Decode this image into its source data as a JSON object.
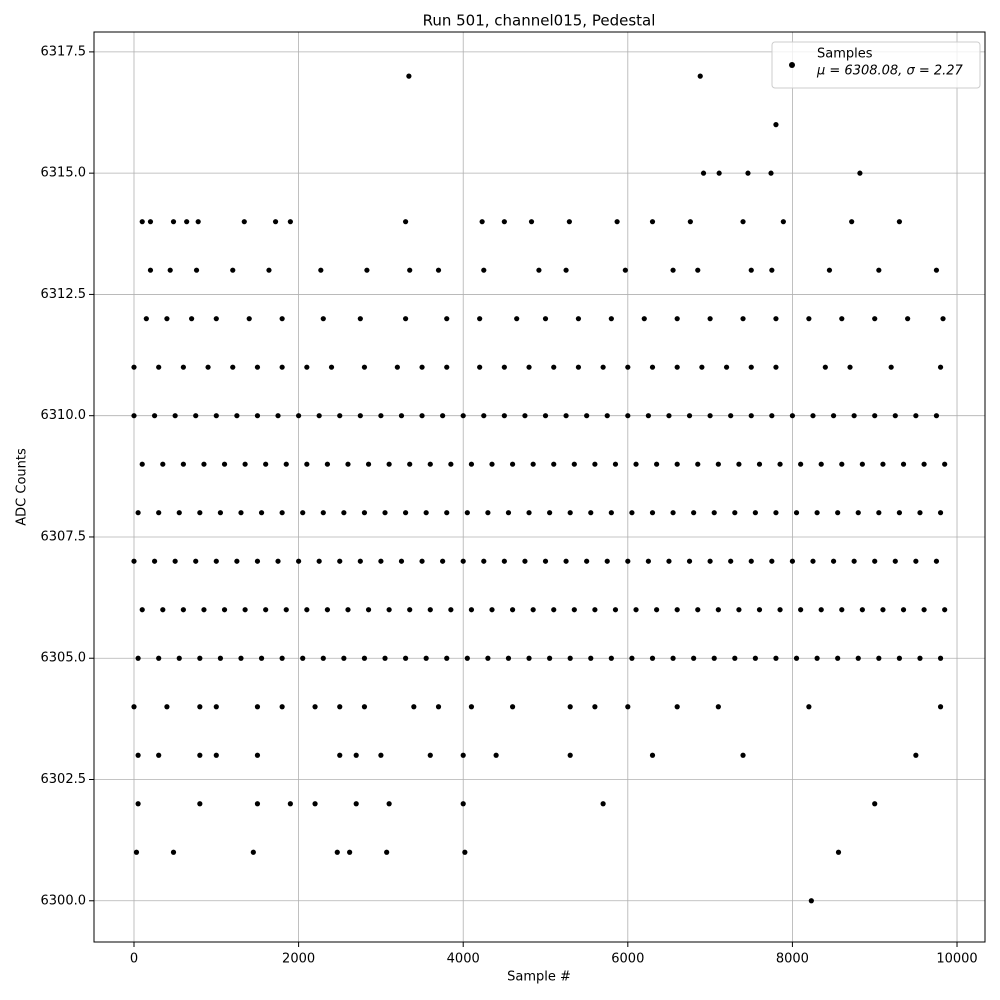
{
  "chart_data": {
    "type": "scatter",
    "title": "Run 501, channel015, Pedestal",
    "xlabel": "Sample #",
    "ylabel": "ADC Counts",
    "legend_loc": "upper right",
    "stats_label": "μ = 6308.08, σ = 2.27",
    "grid": true,
    "xlim": [
      -486,
      10340
    ],
    "ylim": [
      6299.15,
      6317.91
    ],
    "xticks": [
      0,
      2000,
      4000,
      6000,
      8000,
      10000
    ],
    "yticks": [
      {
        "value": 6300,
        "label": "6300.0"
      },
      {
        "value": 6302.5,
        "label": "6302.5"
      },
      {
        "value": 6305,
        "label": "6305.0"
      },
      {
        "value": 6307.5,
        "label": "6307.5"
      },
      {
        "value": 6310,
        "label": "6310.0"
      },
      {
        "value": 6312.5,
        "label": "6312.5"
      },
      {
        "value": 6315,
        "label": "6315.0"
      },
      {
        "value": 6317.5,
        "label": "6317.5"
      }
    ],
    "series": [
      {
        "name": "Samples",
        "color": "#000000",
        "x": [
          3340,
          6880,
          7800,
          6920,
          7110,
          7460,
          7740,
          8820,
          100,
          200,
          480,
          640,
          780,
          1340,
          1720,
          1900,
          3300,
          4230,
          4500,
          4830,
          5290,
          5870,
          6300,
          6760,
          7400,
          7890,
          8720,
          9300,
          200,
          440,
          760,
          1200,
          1640,
          2270,
          2830,
          3350,
          3700,
          4250,
          4920,
          5250,
          5970,
          6550,
          6850,
          7500,
          7750,
          8450,
          9050,
          9750,
          150,
          400,
          700,
          1000,
          1400,
          1800,
          2300,
          2750,
          3300,
          3800,
          4200,
          4650,
          5000,
          5400,
          5800,
          6200,
          6600,
          7000,
          7400,
          7800,
          8200,
          8600,
          9000,
          9400,
          9830,
          0,
          300,
          600,
          900,
          1200,
          1500,
          1800,
          2100,
          2400,
          2800,
          3200,
          3500,
          3800,
          4200,
          4500,
          4800,
          5100,
          5400,
          5700,
          6000,
          6300,
          6600,
          6900,
          7200,
          7500,
          7800,
          8400,
          8700,
          9200,
          9800,
          0,
          250,
          500,
          750,
          1000,
          1250,
          1500,
          1750,
          2000,
          2250,
          2500,
          2750,
          3000,
          3250,
          3500,
          3750,
          4000,
          4250,
          4500,
          4750,
          5000,
          5250,
          5500,
          5750,
          6000,
          6250,
          6500,
          6750,
          7000,
          7250,
          7500,
          7750,
          8000,
          8250,
          8500,
          8750,
          9000,
          9250,
          9500,
          9750,
          100,
          350,
          600,
          850,
          1100,
          1350,
          1600,
          1850,
          2100,
          2350,
          2600,
          2850,
          3100,
          3350,
          3600,
          3850,
          4100,
          4350,
          4600,
          4850,
          5100,
          5350,
          5600,
          5850,
          6100,
          6350,
          6600,
          6850,
          7100,
          7350,
          7600,
          7850,
          8100,
          8350,
          8600,
          8850,
          9100,
          9350,
          9600,
          9850,
          50,
          300,
          550,
          800,
          1050,
          1300,
          1550,
          1800,
          2050,
          2300,
          2550,
          2800,
          3050,
          3300,
          3550,
          3800,
          4050,
          4300,
          4550,
          4800,
          5050,
          5300,
          5550,
          5800,
          6050,
          6300,
          6550,
          6800,
          7050,
          7300,
          7550,
          7800,
          8050,
          8300,
          8550,
          8800,
          9050,
          9300,
          9550,
          9800,
          0,
          250,
          500,
          750,
          1000,
          1250,
          1500,
          1750,
          2000,
          2250,
          2500,
          2750,
          3000,
          3250,
          3500,
          3750,
          4000,
          4250,
          4500,
          4750,
          5000,
          5250,
          5500,
          5750,
          6000,
          6250,
          6500,
          6750,
          7000,
          7250,
          7500,
          7750,
          8000,
          8250,
          8500,
          8750,
          9000,
          9250,
          9500,
          9750,
          100,
          350,
          600,
          850,
          1100,
          1350,
          1600,
          1850,
          2100,
          2350,
          2600,
          2850,
          3100,
          3350,
          3600,
          3850,
          4100,
          4350,
          4600,
          4850,
          5100,
          5350,
          5600,
          5850,
          6100,
          6350,
          6600,
          6850,
          7100,
          7350,
          7600,
          7850,
          8100,
          8350,
          8600,
          8850,
          9100,
          9350,
          9600,
          9850,
          50,
          300,
          550,
          800,
          1050,
          1300,
          1550,
          1800,
          2050,
          2300,
          2550,
          2800,
          3050,
          3300,
          3550,
          3800,
          4050,
          4300,
          4550,
          4800,
          5050,
          5300,
          5550,
          5800,
          6050,
          6300,
          6550,
          6800,
          7050,
          7300,
          7550,
          7800,
          8050,
          8300,
          8550,
          8800,
          9050,
          9300,
          9550,
          9800,
          0,
          400,
          800,
          1000,
          1500,
          1800,
          2200,
          2500,
          2800,
          3400,
          3700,
          4100,
          4600,
          5300,
          5600,
          6000,
          6600,
          7100,
          8200,
          9800,
          50,
          300,
          800,
          1000,
          1500,
          2500,
          2700,
          3000,
          3600,
          4000,
          4400,
          5300,
          6300,
          7400,
          9500,
          50,
          800,
          1500,
          1900,
          2200,
          2700,
          3100,
          4000,
          5700,
          9000,
          30,
          480,
          1450,
          2470,
          2620,
          3070,
          4020,
          8560,
          8230
        ],
        "values": [
          6317,
          6317,
          6316,
          6315,
          6315,
          6315,
          6315,
          6315,
          6314,
          6314,
          6314,
          6314,
          6314,
          6314,
          6314,
          6314,
          6314,
          6314,
          6314,
          6314,
          6314,
          6314,
          6314,
          6314,
          6314,
          6314,
          6314,
          6314,
          6313,
          6313,
          6313,
          6313,
          6313,
          6313,
          6313,
          6313,
          6313,
          6313,
          6313,
          6313,
          6313,
          6313,
          6313,
          6313,
          6313,
          6313,
          6313,
          6313,
          6312,
          6312,
          6312,
          6312,
          6312,
          6312,
          6312,
          6312,
          6312,
          6312,
          6312,
          6312,
          6312,
          6312,
          6312,
          6312,
          6312,
          6312,
          6312,
          6312,
          6312,
          6312,
          6312,
          6312,
          6312,
          6311,
          6311,
          6311,
          6311,
          6311,
          6311,
          6311,
          6311,
          6311,
          6311,
          6311,
          6311,
          6311,
          6311,
          6311,
          6311,
          6311,
          6311,
          6311,
          6311,
          6311,
          6311,
          6311,
          6311,
          6311,
          6311,
          6311,
          6311,
          6311,
          6311,
          6310,
          6310,
          6310,
          6310,
          6310,
          6310,
          6310,
          6310,
          6310,
          6310,
          6310,
          6310,
          6310,
          6310,
          6310,
          6310,
          6310,
          6310,
          6310,
          6310,
          6310,
          6310,
          6310,
          6310,
          6310,
          6310,
          6310,
          6310,
          6310,
          6310,
          6310,
          6310,
          6310,
          6310,
          6310,
          6310,
          6310,
          6310,
          6310,
          6310,
          6309,
          6309,
          6309,
          6309,
          6309,
          6309,
          6309,
          6309,
          6309,
          6309,
          6309,
          6309,
          6309,
          6309,
          6309,
          6309,
          6309,
          6309,
          6309,
          6309,
          6309,
          6309,
          6309,
          6309,
          6309,
          6309,
          6309,
          6309,
          6309,
          6309,
          6309,
          6309,
          6309,
          6309,
          6309,
          6309,
          6309,
          6309,
          6309,
          6309,
          6308,
          6308,
          6308,
          6308,
          6308,
          6308,
          6308,
          6308,
          6308,
          6308,
          6308,
          6308,
          6308,
          6308,
          6308,
          6308,
          6308,
          6308,
          6308,
          6308,
          6308,
          6308,
          6308,
          6308,
          6308,
          6308,
          6308,
          6308,
          6308,
          6308,
          6308,
          6308,
          6308,
          6308,
          6308,
          6308,
          6308,
          6308,
          6308,
          6308,
          6307,
          6307,
          6307,
          6307,
          6307,
          6307,
          6307,
          6307,
          6307,
          6307,
          6307,
          6307,
          6307,
          6307,
          6307,
          6307,
          6307,
          6307,
          6307,
          6307,
          6307,
          6307,
          6307,
          6307,
          6307,
          6307,
          6307,
          6307,
          6307,
          6307,
          6307,
          6307,
          6307,
          6307,
          6307,
          6307,
          6307,
          6307,
          6307,
          6307,
          6306,
          6306,
          6306,
          6306,
          6306,
          6306,
          6306,
          6306,
          6306,
          6306,
          6306,
          6306,
          6306,
          6306,
          6306,
          6306,
          6306,
          6306,
          6306,
          6306,
          6306,
          6306,
          6306,
          6306,
          6306,
          6306,
          6306,
          6306,
          6306,
          6306,
          6306,
          6306,
          6306,
          6306,
          6306,
          6306,
          6306,
          6306,
          6306,
          6306,
          6305,
          6305,
          6305,
          6305,
          6305,
          6305,
          6305,
          6305,
          6305,
          6305,
          6305,
          6305,
          6305,
          6305,
          6305,
          6305,
          6305,
          6305,
          6305,
          6305,
          6305,
          6305,
          6305,
          6305,
          6305,
          6305,
          6305,
          6305,
          6305,
          6305,
          6305,
          6305,
          6305,
          6305,
          6305,
          6305,
          6305,
          6305,
          6305,
          6305,
          6304,
          6304,
          6304,
          6304,
          6304,
          6304,
          6304,
          6304,
          6304,
          6304,
          6304,
          6304,
          6304,
          6304,
          6304,
          6304,
          6304,
          6304,
          6304,
          6304,
          6303,
          6303,
          6303,
          6303,
          6303,
          6303,
          6303,
          6303,
          6303,
          6303,
          6303,
          6303,
          6303,
          6303,
          6303,
          6302,
          6302,
          6302,
          6302,
          6302,
          6302,
          6302,
          6302,
          6302,
          6302,
          6301,
          6301,
          6301,
          6301,
          6301,
          6301,
          6301,
          6301,
          6300
        ]
      }
    ]
  }
}
